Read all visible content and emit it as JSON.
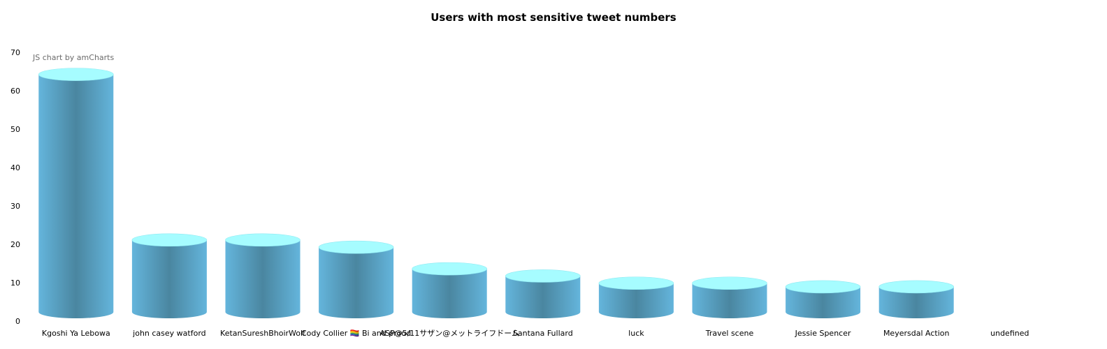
{
  "chart_data": {
    "type": "bar",
    "title": "Users with most sensitive tweet numbers",
    "credit": "JS chart by amCharts",
    "categories": [
      "Kgoshi Ya Lebowa",
      "john casey watford",
      "KetanSureshBhoirWolf",
      "Cody Collier 🏳️‍🌈 Bi and proud",
      "ASP@5/11サザン@メットライフドーム",
      "Santana Fullard",
      "luck",
      "Travel scene",
      "Jessie Spencer",
      "Meyersdal Action",
      "undefined"
    ],
    "values": [
      66,
      20,
      20,
      18,
      12,
      10,
      8,
      8,
      7,
      7,
      0
    ],
    "ylim": [
      0,
      70
    ],
    "yticks": [
      0,
      10,
      20,
      30,
      40,
      50,
      60,
      70
    ],
    "xlabel": "",
    "ylabel": "",
    "grid": false,
    "colors": {
      "body_edge": "#64b5dc",
      "body_center": "#4a86a0",
      "top": "#a6fcff",
      "top_edge": "#8fe9f2"
    }
  }
}
